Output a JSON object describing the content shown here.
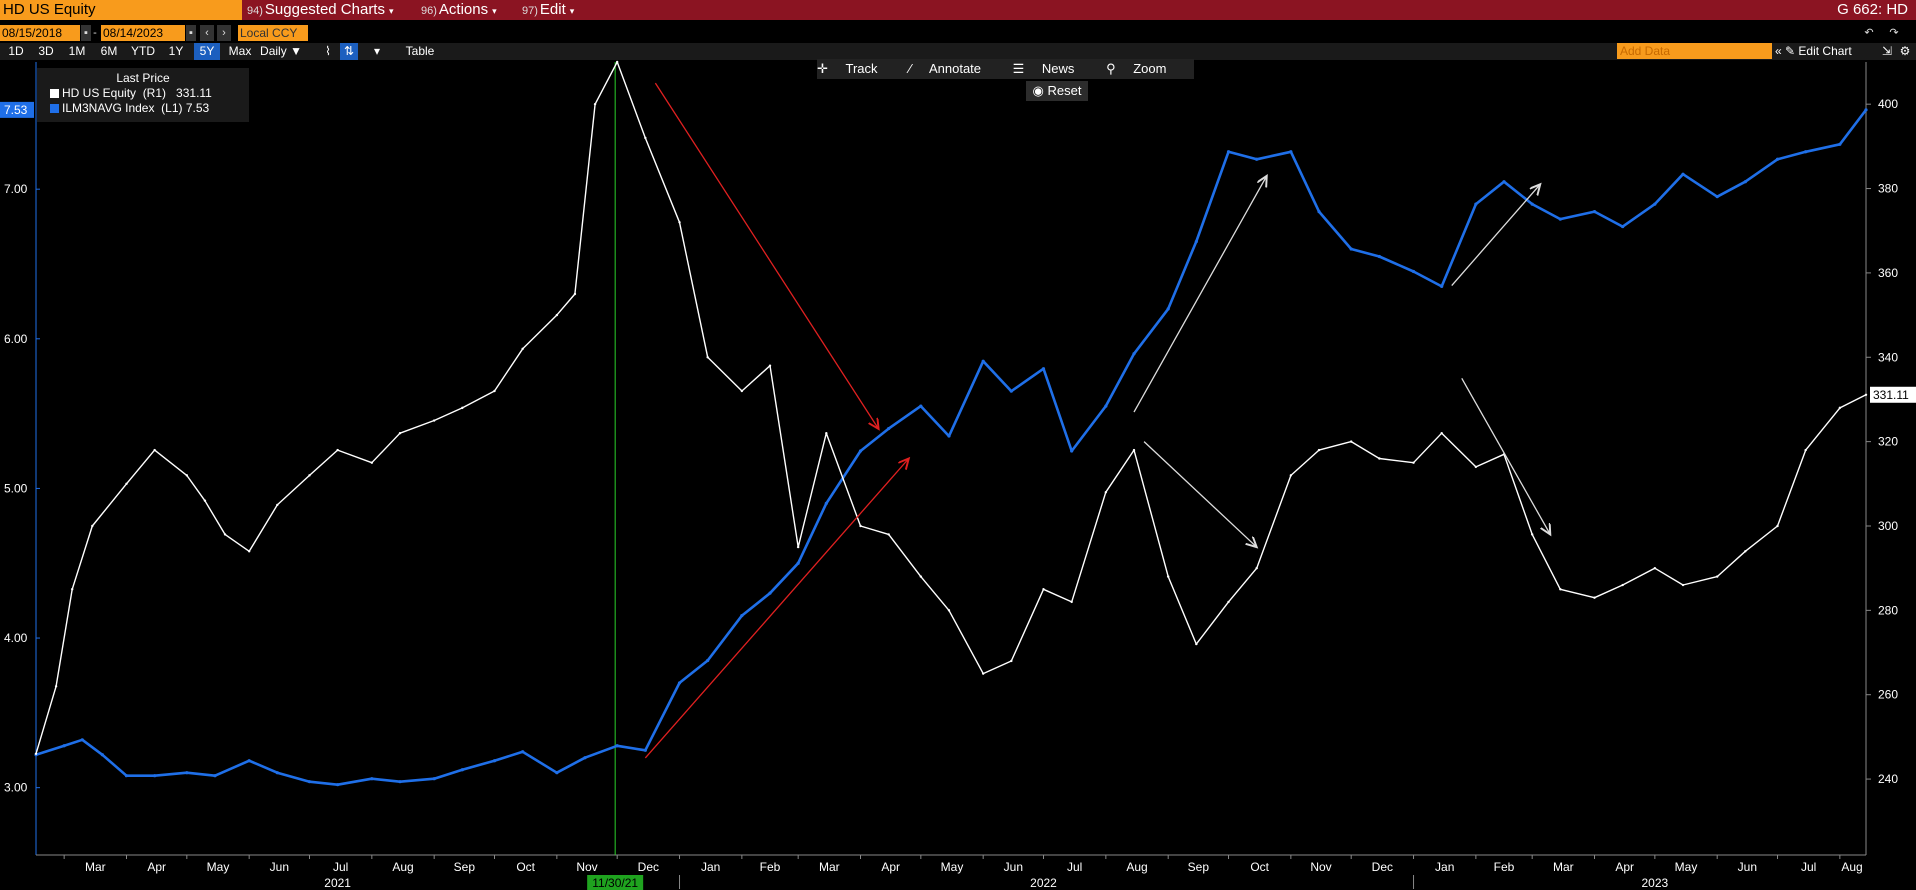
{
  "header": {
    "ticker": "HD US Equity",
    "menus": [
      {
        "num": "94)",
        "label": "Suggested Charts"
      },
      {
        "num": "96)",
        "label": "Actions"
      },
      {
        "num": "97)",
        "label": "Edit"
      }
    ],
    "gcode": "G 662: HD"
  },
  "controls": {
    "start_date": "08/15/2018",
    "end_date": "08/14/2023",
    "currency": "Local CCY",
    "periods": [
      "1D",
      "3D",
      "1M",
      "6M",
      "YTD",
      "1Y",
      "5Y",
      "Max"
    ],
    "active_period": "5Y",
    "frequency": "Daily",
    "table_label": "Table",
    "add_data_placeholder": "Add Data",
    "edit_chart_label": "Edit Chart"
  },
  "toolbar": {
    "track": "Track",
    "annotate": "Annotate",
    "news": "News",
    "zoom": "Zoom",
    "reset": "Reset"
  },
  "legend": {
    "title": "Last Price",
    "entries": [
      {
        "label": "HD US Equity  (R1)",
        "value": "331.11",
        "color": "#ffffff"
      },
      {
        "label": "ILM3NAVG Index  (L1)",
        "value": "7.53",
        "color": "#1f6fe8"
      }
    ]
  },
  "chart_data": {
    "type": "line",
    "title": "",
    "x_range": [
      "2021-02-15",
      "2023-08-14"
    ],
    "month_ticks": [
      "Mar",
      "Apr",
      "May",
      "Jun",
      "Jul",
      "Aug",
      "Sep",
      "Oct",
      "Nov",
      "Dec",
      "Jan",
      "Feb",
      "Mar",
      "Apr",
      "May",
      "Jun",
      "Jul",
      "Aug",
      "Sep",
      "Oct",
      "Nov",
      "Dec",
      "Jan",
      "Feb",
      "Mar",
      "Apr",
      "May",
      "Jun",
      "Jul",
      "Aug"
    ],
    "year_labels": [
      "2021",
      "2022",
      "2023"
    ],
    "cursor_date": "11/30/21",
    "left_axis": {
      "ticks": [
        "3.00",
        "4.00",
        "5.00",
        "6.00",
        "7.00"
      ],
      "ylim": [
        2.55,
        7.85
      ],
      "last_value": "7.53"
    },
    "right_axis": {
      "ticks": [
        "240",
        "260",
        "280",
        "300",
        "320",
        "340",
        "360",
        "380",
        "400"
      ],
      "ylim": [
        222,
        410
      ],
      "last_value": "331.11"
    },
    "series": [
      {
        "name": "ILM3NAVG Index (L1)",
        "axis": "left",
        "color": "#1f6fe8",
        "x": [
          "2021-02-15",
          "2021-03-01",
          "2021-03-10",
          "2021-03-20",
          "2021-04-01",
          "2021-04-15",
          "2021-05-01",
          "2021-05-15",
          "2021-06-01",
          "2021-06-15",
          "2021-07-01",
          "2021-07-15",
          "2021-08-01",
          "2021-08-15",
          "2021-09-01",
          "2021-09-15",
          "2021-10-01",
          "2021-10-15",
          "2021-11-01",
          "2021-11-15",
          "2021-12-01",
          "2021-12-15",
          "2022-01-01",
          "2022-01-15",
          "2022-02-01",
          "2022-02-15",
          "2022-03-01",
          "2022-03-15",
          "2022-04-01",
          "2022-04-15",
          "2022-05-01",
          "2022-05-15",
          "2022-06-01",
          "2022-06-15",
          "2022-07-01",
          "2022-07-15",
          "2022-08-01",
          "2022-08-15",
          "2022-09-01",
          "2022-09-15",
          "2022-10-01",
          "2022-10-15",
          "2022-11-01",
          "2022-11-15",
          "2022-12-01",
          "2022-12-15",
          "2023-01-01",
          "2023-01-15",
          "2023-02-01",
          "2023-02-15",
          "2023-03-01",
          "2023-03-15",
          "2023-04-01",
          "2023-04-15",
          "2023-05-01",
          "2023-05-15",
          "2023-06-01",
          "2023-06-15",
          "2023-07-01",
          "2023-07-15",
          "2023-08-01",
          "2023-08-14"
        ],
        "values": [
          3.22,
          3.28,
          3.32,
          3.22,
          3.08,
          3.08,
          3.1,
          3.08,
          3.18,
          3.1,
          3.04,
          3.02,
          3.06,
          3.04,
          3.06,
          3.12,
          3.18,
          3.24,
          3.1,
          3.2,
          3.28,
          3.25,
          3.7,
          3.85,
          4.15,
          4.3,
          4.5,
          4.9,
          5.25,
          5.4,
          5.55,
          5.35,
          5.85,
          5.65,
          5.8,
          5.25,
          5.55,
          5.9,
          6.2,
          6.65,
          7.25,
          7.2,
          7.25,
          6.85,
          6.6,
          6.55,
          6.45,
          6.35,
          6.9,
          7.05,
          6.9,
          6.8,
          6.85,
          6.75,
          6.9,
          7.1,
          6.95,
          7.05,
          7.2,
          7.25,
          7.3,
          7.53
        ]
      },
      {
        "name": "HD US Equity (R1)",
        "axis": "right",
        "color": "#ffffff",
        "x": [
          "2021-02-15",
          "2021-02-25",
          "2021-03-05",
          "2021-03-15",
          "2021-04-01",
          "2021-04-15",
          "2021-05-01",
          "2021-05-10",
          "2021-05-20",
          "2021-06-01",
          "2021-06-15",
          "2021-07-01",
          "2021-07-15",
          "2021-08-01",
          "2021-08-15",
          "2021-09-01",
          "2021-09-15",
          "2021-10-01",
          "2021-10-15",
          "2021-11-01",
          "2021-11-10",
          "2021-11-20",
          "2021-12-01",
          "2021-12-15",
          "2022-01-01",
          "2022-01-15",
          "2022-02-01",
          "2022-02-15",
          "2022-03-01",
          "2022-03-15",
          "2022-04-01",
          "2022-04-15",
          "2022-05-01",
          "2022-05-15",
          "2022-06-01",
          "2022-06-15",
          "2022-07-01",
          "2022-07-15",
          "2022-08-01",
          "2022-08-15",
          "2022-09-01",
          "2022-09-15",
          "2022-10-01",
          "2022-10-15",
          "2022-11-01",
          "2022-11-15",
          "2022-12-01",
          "2022-12-15",
          "2023-01-01",
          "2023-01-15",
          "2023-02-01",
          "2023-02-15",
          "2023-03-01",
          "2023-03-15",
          "2023-04-01",
          "2023-04-15",
          "2023-05-01",
          "2023-05-15",
          "2023-06-01",
          "2023-06-15",
          "2023-07-01",
          "2023-07-15",
          "2023-08-01",
          "2023-08-14"
        ],
        "values": [
          246,
          262,
          285,
          300,
          310,
          318,
          312,
          306,
          298,
          294,
          305,
          312,
          318,
          315,
          322,
          325,
          328,
          332,
          342,
          350,
          355,
          400,
          410,
          392,
          372,
          340,
          332,
          338,
          295,
          322,
          300,
          298,
          288,
          280,
          265,
          268,
          285,
          282,
          308,
          318,
          288,
          272,
          282,
          290,
          312,
          318,
          320,
          316,
          315,
          322,
          314,
          317,
          298,
          285,
          283,
          286,
          290,
          286,
          288,
          294,
          300,
          318,
          328,
          331.11
        ]
      }
    ],
    "annotations": [
      {
        "type": "arrow",
        "color": "red",
        "from": [
          "2021-12-20",
          405
        ],
        "to": [
          "2022-04-10",
          323
        ]
      },
      {
        "type": "arrow",
        "color": "red",
        "from": [
          "2021-12-15",
          245
        ],
        "to": [
          "2022-04-25",
          316
        ]
      },
      {
        "type": "arrow",
        "color": "white",
        "from": [
          "2022-08-15",
          327
        ],
        "to": [
          "2022-10-20",
          383
        ]
      },
      {
        "type": "arrow",
        "color": "white",
        "from": [
          "2022-08-20",
          320
        ],
        "to": [
          "2022-10-15",
          295
        ]
      },
      {
        "type": "arrow",
        "color": "white",
        "from": [
          "2023-01-20",
          357
        ],
        "to": [
          "2023-03-05",
          381
        ]
      },
      {
        "type": "arrow",
        "color": "white",
        "from": [
          "2023-01-25",
          335
        ],
        "to": [
          "2023-03-10",
          298
        ]
      }
    ]
  }
}
